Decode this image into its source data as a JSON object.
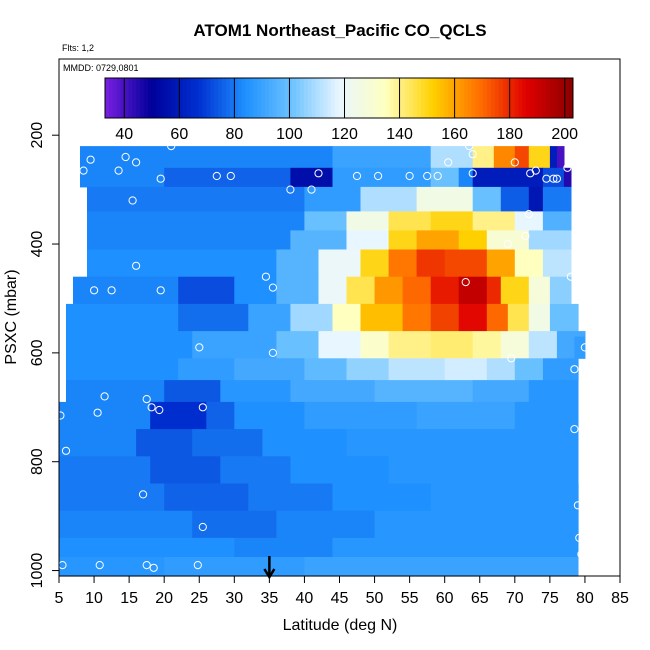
{
  "chart_data": {
    "type": "heatmap",
    "title": "ATOM1 Northeast_Pacific CO_QCLS",
    "subtitle_flights": "Flts: 1,2",
    "subtitle_dates": "MMDD: 0729,0801",
    "xlabel": "Latitude (deg N)",
    "ylabel": "PSXC (mbar)",
    "xlim": [
      5,
      85
    ],
    "ylim": [
      1010,
      60
    ],
    "y_reversed": true,
    "x_ticks": [
      "5",
      "10",
      "15",
      "20",
      "25",
      "30",
      "35",
      "40",
      "45",
      "50",
      "55",
      "60",
      "65",
      "70",
      "75",
      "80",
      "85"
    ],
    "y_ticks": [
      "200",
      "400",
      "600",
      "800",
      "1000"
    ],
    "colorbar": {
      "min": 33,
      "max": 203,
      "ticks": [
        "40",
        "60",
        "80",
        "100",
        "120",
        "140",
        "160",
        "180",
        "200"
      ],
      "stops": [
        "#7a1fe0",
        "#00009a",
        "#0030d0",
        "#1e90ff",
        "#6ec3ff",
        "#e8f6ff",
        "#ffffc0",
        "#ffd000",
        "#ff7000",
        "#e00000",
        "#8a0000"
      ]
    },
    "arrow_marker_lat": 35,
    "rows": [
      {
        "p0": 220,
        "p1": 260,
        "segments": [
          [
            8,
            44,
            82
          ],
          [
            44,
            58,
            90
          ],
          [
            58,
            64,
            110
          ],
          [
            64,
            67,
            140
          ],
          [
            67,
            70,
            165
          ],
          [
            70,
            72,
            175
          ],
          [
            72,
            75,
            150
          ],
          [
            75,
            76,
            60
          ],
          [
            76,
            77,
            40
          ]
        ]
      },
      {
        "p0": 260,
        "p1": 295,
        "segments": [
          [
            8,
            20,
            82
          ],
          [
            20,
            38,
            76
          ],
          [
            38,
            44,
            55
          ],
          [
            44,
            58,
            88
          ],
          [
            58,
            62,
            100
          ],
          [
            62,
            64,
            82
          ],
          [
            64,
            74,
            60
          ],
          [
            74,
            77,
            72
          ],
          [
            77,
            78,
            45
          ]
        ]
      },
      {
        "p0": 295,
        "p1": 340,
        "segments": [
          [
            9,
            40,
            80
          ],
          [
            40,
            48,
            88
          ],
          [
            48,
            56,
            110
          ],
          [
            56,
            64,
            125
          ],
          [
            64,
            68,
            100
          ],
          [
            68,
            72,
            75
          ],
          [
            72,
            74,
            58
          ],
          [
            74,
            78,
            80
          ]
        ]
      },
      {
        "p0": 340,
        "p1": 375,
        "segments": [
          [
            9,
            40,
            82
          ],
          [
            40,
            46,
            100
          ],
          [
            46,
            52,
            125
          ],
          [
            52,
            58,
            145
          ],
          [
            58,
            64,
            150
          ],
          [
            64,
            70,
            140
          ],
          [
            70,
            74,
            118
          ],
          [
            74,
            78,
            95
          ]
        ]
      },
      {
        "p0": 375,
        "p1": 410,
        "segments": [
          [
            9,
            38,
            82
          ],
          [
            38,
            46,
            96
          ],
          [
            46,
            52,
            118
          ],
          [
            52,
            56,
            150
          ],
          [
            56,
            62,
            160
          ],
          [
            62,
            66,
            152
          ],
          [
            66,
            72,
            130
          ],
          [
            72,
            78,
            108
          ]
        ]
      },
      {
        "p0": 410,
        "p1": 460,
        "segments": [
          [
            9,
            36,
            84
          ],
          [
            36,
            42,
            96
          ],
          [
            42,
            48,
            120
          ],
          [
            48,
            52,
            150
          ],
          [
            52,
            56,
            168
          ],
          [
            56,
            60,
            178
          ],
          [
            60,
            66,
            175
          ],
          [
            66,
            70,
            160
          ],
          [
            70,
            74,
            135
          ],
          [
            74,
            78,
            112
          ]
        ]
      },
      {
        "p0": 460,
        "p1": 510,
        "segments": [
          [
            7,
            22,
            82
          ],
          [
            22,
            30,
            72
          ],
          [
            30,
            36,
            84
          ],
          [
            36,
            42,
            96
          ],
          [
            42,
            46,
            120
          ],
          [
            46,
            50,
            145
          ],
          [
            50,
            54,
            162
          ],
          [
            54,
            58,
            170
          ],
          [
            58,
            62,
            182
          ],
          [
            62,
            66,
            192
          ],
          [
            66,
            68,
            180
          ],
          [
            68,
            72,
            150
          ],
          [
            72,
            75,
            128
          ],
          [
            75,
            78,
            105
          ]
        ]
      },
      {
        "p0": 510,
        "p1": 560,
        "segments": [
          [
            6,
            22,
            84
          ],
          [
            22,
            32,
            78
          ],
          [
            32,
            38,
            90
          ],
          [
            38,
            44,
            108
          ],
          [
            44,
            48,
            135
          ],
          [
            48,
            54,
            155
          ],
          [
            54,
            58,
            168
          ],
          [
            58,
            62,
            176
          ],
          [
            62,
            66,
            185
          ],
          [
            66,
            69,
            170
          ],
          [
            69,
            72,
            145
          ],
          [
            72,
            75,
            125
          ],
          [
            75,
            79,
            100
          ]
        ]
      },
      {
        "p0": 560,
        "p1": 610,
        "segments": [
          [
            6,
            24,
            84
          ],
          [
            24,
            36,
            90
          ],
          [
            36,
            42,
            100
          ],
          [
            42,
            48,
            118
          ],
          [
            48,
            52,
            132
          ],
          [
            52,
            58,
            140
          ],
          [
            58,
            64,
            142
          ],
          [
            64,
            68,
            138
          ],
          [
            68,
            72,
            128
          ],
          [
            72,
            76,
            112
          ],
          [
            76,
            80,
            92
          ]
        ]
      },
      {
        "p0": 610,
        "p1": 650,
        "segments": [
          [
            6,
            22,
            84
          ],
          [
            22,
            30,
            88
          ],
          [
            30,
            40,
            92
          ],
          [
            40,
            46,
            98
          ],
          [
            46,
            52,
            106
          ],
          [
            52,
            60,
            112
          ],
          [
            60,
            66,
            115
          ],
          [
            66,
            70,
            110
          ],
          [
            70,
            74,
            100
          ],
          [
            74,
            79,
            88
          ]
        ]
      },
      {
        "p0": 650,
        "p1": 690,
        "segments": [
          [
            6,
            20,
            82
          ],
          [
            20,
            28,
            74
          ],
          [
            28,
            38,
            86
          ],
          [
            38,
            50,
            92
          ],
          [
            50,
            64,
            96
          ],
          [
            64,
            72,
            92
          ],
          [
            72,
            79,
            86
          ]
        ]
      },
      {
        "p0": 690,
        "p1": 740,
        "segments": [
          [
            5,
            18,
            82
          ],
          [
            18,
            26,
            66
          ],
          [
            26,
            30,
            76
          ],
          [
            30,
            40,
            84
          ],
          [
            40,
            56,
            88
          ],
          [
            56,
            70,
            90
          ],
          [
            70,
            79,
            86
          ]
        ]
      },
      {
        "p0": 740,
        "p1": 790,
        "segments": [
          [
            5,
            16,
            82
          ],
          [
            16,
            24,
            74
          ],
          [
            24,
            34,
            78
          ],
          [
            34,
            46,
            84
          ],
          [
            46,
            60,
            86
          ],
          [
            60,
            79,
            86
          ]
        ]
      },
      {
        "p0": 790,
        "p1": 840,
        "segments": [
          [
            5,
            18,
            80
          ],
          [
            18,
            28,
            74
          ],
          [
            28,
            38,
            80
          ],
          [
            38,
            52,
            84
          ],
          [
            52,
            79,
            86
          ]
        ]
      },
      {
        "p0": 840,
        "p1": 890,
        "segments": [
          [
            5,
            20,
            80
          ],
          [
            20,
            32,
            76
          ],
          [
            32,
            44,
            80
          ],
          [
            44,
            58,
            84
          ],
          [
            58,
            79,
            86
          ]
        ]
      },
      {
        "p0": 890,
        "p1": 940,
        "segments": [
          [
            5,
            24,
            82
          ],
          [
            24,
            36,
            78
          ],
          [
            36,
            50,
            82
          ],
          [
            50,
            79,
            86
          ]
        ]
      },
      {
        "p0": 940,
        "p1": 975,
        "segments": [
          [
            5,
            30,
            84
          ],
          [
            30,
            44,
            82
          ],
          [
            44,
            79,
            86
          ]
        ]
      },
      {
        "p0": 975,
        "p1": 1010,
        "segments": [
          [
            5,
            20,
            86
          ],
          [
            20,
            40,
            88
          ],
          [
            40,
            79,
            90
          ]
        ]
      }
    ],
    "extra_cells": [
      [
        78.5,
        80,
        570,
        610,
        88
      ]
    ],
    "points": [
      [
        5.2,
        715
      ],
      [
        6,
        780
      ],
      [
        5.5,
        990
      ],
      [
        10.5,
        710
      ],
      [
        11.5,
        680
      ],
      [
        10.8,
        990
      ],
      [
        17.5,
        685
      ],
      [
        18.2,
        700
      ],
      [
        19.3,
        705
      ],
      [
        17,
        860
      ],
      [
        17.5,
        990
      ],
      [
        18.5,
        995
      ],
      [
        24.8,
        990
      ],
      [
        25.5,
        920
      ],
      [
        25,
        590
      ],
      [
        25.5,
        700
      ],
      [
        34.5,
        460
      ],
      [
        35.5,
        480
      ],
      [
        35.5,
        600
      ],
      [
        38,
        300
      ],
      [
        41,
        300
      ],
      [
        42,
        270
      ],
      [
        47.5,
        275
      ],
      [
        50.5,
        275
      ],
      [
        55,
        275
      ],
      [
        57.5,
        275
      ],
      [
        59,
        275
      ],
      [
        60.5,
        250
      ],
      [
        63,
        470
      ],
      [
        63.5,
        220
      ],
      [
        64,
        235
      ],
      [
        64,
        270
      ],
      [
        69.5,
        610
      ],
      [
        69,
        400
      ],
      [
        70,
        250
      ],
      [
        71.5,
        385
      ],
      [
        72,
        345
      ],
      [
        72.2,
        270
      ],
      [
        73,
        265
      ],
      [
        74.5,
        280
      ],
      [
        76,
        280
      ],
      [
        77.5,
        260
      ],
      [
        78,
        460
      ],
      [
        78.5,
        630
      ],
      [
        78.5,
        740
      ],
      [
        79,
        880
      ],
      [
        79.2,
        940
      ],
      [
        79.5,
        970
      ],
      [
        79.8,
        820
      ],
      [
        80,
        590
      ],
      [
        75.5,
        280
      ],
      [
        8.5,
        265
      ],
      [
        9.5,
        245
      ],
      [
        13.5,
        265
      ],
      [
        14.5,
        240
      ],
      [
        15.5,
        320
      ],
      [
        16,
        440
      ],
      [
        19.5,
        280
      ],
      [
        21,
        220
      ],
      [
        27.5,
        275
      ],
      [
        29.5,
        275
      ],
      [
        12.5,
        485
      ],
      [
        10,
        485
      ],
      [
        19.5,
        485
      ],
      [
        16,
        250
      ]
    ]
  }
}
